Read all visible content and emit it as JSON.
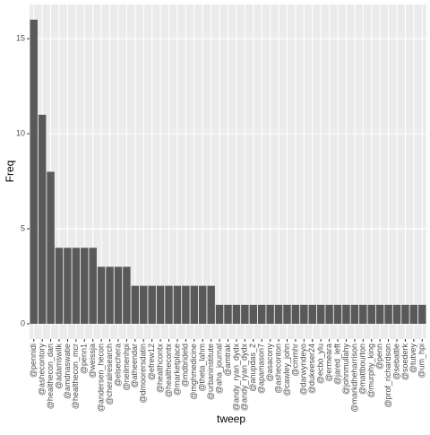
{
  "chart_data": {
    "type": "bar",
    "x_label": "tweep",
    "y_label": "Freq",
    "categories": [
      "@pennidi",
      "@ashecontory",
      "@healthecon_dan",
      "@adamswilk",
      "@amdnaswatie",
      "@healthecon_mcr",
      "@penn1",
      "@weissja",
      "@andersen_hecon",
      "@cheralresearch",
      "@elsechera",
      "@neilmenhpi",
      "@atheendar",
      "@dmoorersdatin",
      "@efrew12",
      "@healthcontx",
      "@healthecontx",
      "@marketplace",
      "@mdbrideld",
      "@mghmedicine",
      "@theta_lahm",
      "@urbaninstitute",
      "@aha_journal",
      "@amtrak",
      "@andy_ryan_dydx",
      "@andy_ryan_dydx",
      "@anupdas_2",
      "@apamason7",
      "@asacony",
      "@asheconton",
      "@cawley_john",
      "@cmmhr",
      "@darwyndeyo",
      "@dukeeser24",
      "@ecbo_ylu",
      "@ermeara",
      "@jared_left",
      "@johnmullahy",
      "@markdheharrison",
      "@mattbourton",
      "@murphy_king",
      "@penn",
      "@prof_richardson",
      "@sebattle",
      "@soederk",
      "@tutvey",
      "@um_hpi"
    ],
    "values": [
      16,
      11,
      8,
      4,
      4,
      4,
      4,
      4,
      3,
      3,
      3,
      3,
      2,
      2,
      2,
      2,
      2,
      2,
      2,
      2,
      2,
      2,
      1,
      1,
      1,
      1,
      1,
      1,
      1,
      1,
      1,
      1,
      1,
      1,
      1,
      1,
      1,
      1,
      1,
      1,
      1,
      1,
      1,
      1,
      1,
      1,
      1
    ],
    "color": "#595959",
    "ylim": [
      -0.8,
      16.8
    ],
    "yticks": [
      0,
      5,
      10,
      15
    ],
    "grid": true
  }
}
